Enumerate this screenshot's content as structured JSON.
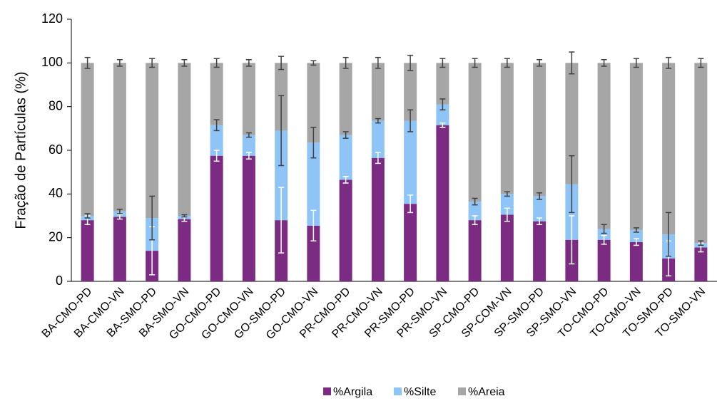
{
  "chart_data": {
    "type": "stacked_bar",
    "y_label": "Fração de Partículas (%)",
    "categories": [
      "BA-CMO-PD",
      "BA-CMO-VN",
      "BA-SMO-PD",
      "BA-SMO-VN",
      "GO-CMO-PD",
      "GO-CMO-VN",
      "GO-SMO-PD",
      "GO-CMO-VN",
      "PR-CMO-PD",
      "PR-CMO-VN",
      "PR-SMO-PD",
      "PR-SMO-VN",
      "SP-CMO-PD",
      "SP-COM-VN",
      "SP-SMO-PD",
      "SP-SMO-VN",
      "TO-CMO-PD",
      "TO-CMO-VN",
      "TO-SMO-PD",
      "TO-SMO-VN"
    ],
    "series": [
      {
        "name": "%Argila",
        "color": "#7b2c82",
        "error_color": "#ffffff",
        "values": [
          28,
          29.5,
          14,
          28.5,
          57.5,
          57.5,
          28,
          25.5,
          46.5,
          56.5,
          35.5,
          71.5,
          28,
          30.5,
          27.5,
          19,
          19,
          18,
          10.5,
          15.5
        ],
        "errors": [
          2,
          1,
          11,
          1,
          2.5,
          1.5,
          15,
          7,
          1.5,
          2.5,
          4,
          1,
          2,
          3,
          1.5,
          11,
          2,
          1.5,
          8,
          2
        ]
      },
      {
        "name": "%Silte",
        "color": "#8fc4f6",
        "error_color": "#404040",
        "values": [
          2,
          2.5,
          15,
          1.5,
          14,
          9.5,
          41,
          38,
          20.5,
          17,
          38,
          9.5,
          8.5,
          9.5,
          11.5,
          25.5,
          5,
          5.5,
          11,
          2
        ],
        "errors": [
          1,
          1,
          10,
          0.5,
          2.5,
          1,
          16,
          7,
          1.5,
          1,
          5,
          2.5,
          1.5,
          1,
          1.5,
          13,
          2,
          1,
          10,
          1
        ]
      },
      {
        "name": "%Areia",
        "color": "#a6a6a6",
        "error_color": "#404040",
        "values": [
          70,
          68,
          71,
          70,
          28.5,
          33,
          31,
          36.5,
          33,
          26.5,
          26.5,
          19,
          63.5,
          60,
          61,
          55.5,
          76,
          76.5,
          78.5,
          82.5
        ],
        "errors": [
          2.5,
          1.5,
          2,
          1.5,
          2,
          1.5,
          3,
          1,
          2.5,
          2.5,
          3.5,
          2,
          2,
          2,
          1.5,
          5,
          1.5,
          2,
          2.5,
          2
        ]
      }
    ],
    "ylim": [
      0,
      120
    ],
    "yticks": [
      0,
      20,
      40,
      60,
      80,
      100,
      120
    ],
    "grid": false,
    "legend": "bottom"
  }
}
